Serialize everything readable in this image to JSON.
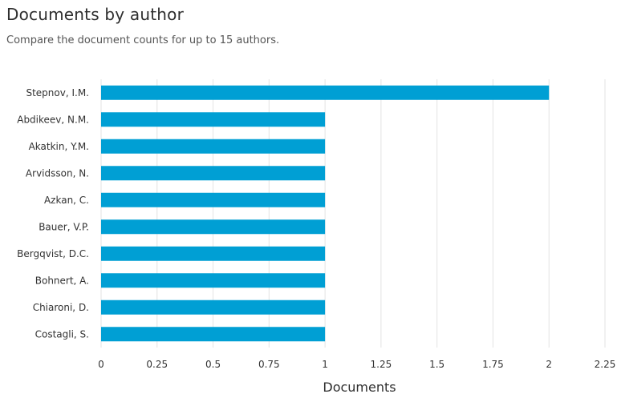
{
  "header": {
    "title": "Documents by author",
    "subtitle": "Compare the document counts for up to 15 authors."
  },
  "chart_data": {
    "type": "bar",
    "orientation": "horizontal",
    "categories": [
      "Stepnov, I.M.",
      "Abdikeev, N.M.",
      "Akatkin, Y.M.",
      "Arvidsson, N.",
      "Azkan, C.",
      "Bauer, V.P.",
      "Bergqvist, D.C.",
      "Bohnert, A.",
      "Chiaroni, D.",
      "Costagli, S."
    ],
    "values": [
      2,
      1,
      1,
      1,
      1,
      1,
      1,
      1,
      1,
      1
    ],
    "xlabel": "Documents",
    "ylabel": "",
    "xlim": [
      0,
      2.25
    ],
    "x_ticks": [
      "0",
      "0.25",
      "0.5",
      "0.75",
      "1",
      "1.25",
      "1.5",
      "1.75",
      "2",
      "2.25"
    ],
    "grid": true,
    "bar_color": "#009fd4",
    "grid_color": "#e3e3e3"
  }
}
